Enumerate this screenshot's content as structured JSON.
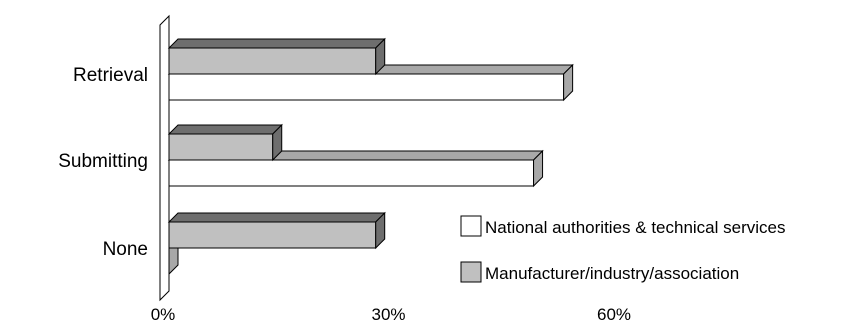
{
  "chart_data": {
    "type": "bar",
    "orientation": "horizontal",
    "style": "3d",
    "categories": [
      "Retrieval",
      "Submitting",
      "None"
    ],
    "series": [
      {
        "name": "Manufacturer/industry/association",
        "values": [
          27.5,
          13.8,
          27.5
        ],
        "color": "#c0c0c0"
      },
      {
        "name": "National authorities & technical services",
        "values": [
          52.5,
          48.5,
          0
        ],
        "color": "#ffffff"
      }
    ],
    "xlim": [
      0,
      60
    ],
    "x_ticks": [
      "0%",
      "30%",
      "60%"
    ],
    "grid": false,
    "legend_position": "bottom-right"
  }
}
